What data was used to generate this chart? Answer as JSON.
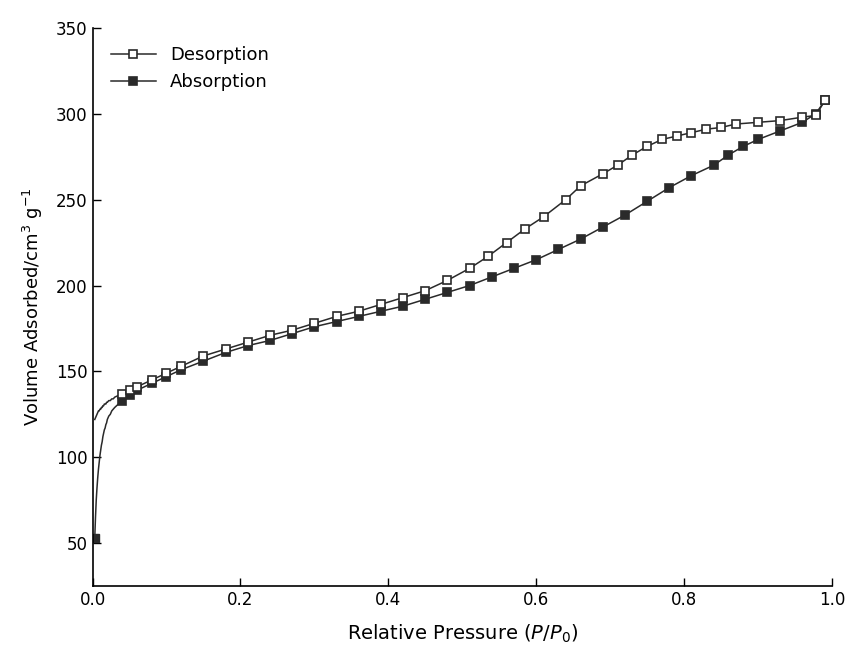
{
  "desorption_x": [
    0.003,
    0.004,
    0.005,
    0.006,
    0.007,
    0.008,
    0.009,
    0.01,
    0.011,
    0.012,
    0.013,
    0.014,
    0.015,
    0.016,
    0.017,
    0.018,
    0.019,
    0.02,
    0.022,
    0.024,
    0.026,
    0.028,
    0.03,
    0.035,
    0.04,
    0.05,
    0.06,
    0.08,
    0.1,
    0.12,
    0.15,
    0.18,
    0.21,
    0.24,
    0.27,
    0.3,
    0.33,
    0.36,
    0.39,
    0.42,
    0.45,
    0.48,
    0.51,
    0.535,
    0.56,
    0.585,
    0.61,
    0.64,
    0.66,
    0.69,
    0.71,
    0.73,
    0.75,
    0.77,
    0.79,
    0.81,
    0.83,
    0.85,
    0.87,
    0.9,
    0.93,
    0.96,
    0.978,
    0.991
  ],
  "desorption_y": [
    122,
    123,
    124,
    125,
    126,
    127,
    127,
    128,
    128,
    129,
    129,
    130,
    130,
    131,
    131,
    131,
    132,
    132,
    133,
    133,
    134,
    134,
    135,
    136,
    137,
    139,
    141,
    145,
    149,
    153,
    159,
    163,
    167,
    171,
    174,
    178,
    182,
    185,
    189,
    193,
    197,
    203,
    210,
    217,
    225,
    233,
    240,
    250,
    258,
    265,
    270,
    276,
    281,
    285,
    287,
    289,
    291,
    292,
    294,
    295,
    296,
    298,
    299,
    308
  ],
  "absorption_x": [
    0.003,
    0.004,
    0.005,
    0.006,
    0.007,
    0.008,
    0.009,
    0.01,
    0.011,
    0.012,
    0.013,
    0.014,
    0.015,
    0.016,
    0.017,
    0.018,
    0.019,
    0.02,
    0.022,
    0.024,
    0.026,
    0.028,
    0.03,
    0.035,
    0.04,
    0.05,
    0.06,
    0.08,
    0.1,
    0.12,
    0.15,
    0.18,
    0.21,
    0.24,
    0.27,
    0.3,
    0.33,
    0.36,
    0.39,
    0.42,
    0.45,
    0.48,
    0.51,
    0.54,
    0.57,
    0.6,
    0.63,
    0.66,
    0.69,
    0.72,
    0.75,
    0.78,
    0.81,
    0.84,
    0.86,
    0.88,
    0.9,
    0.93,
    0.96,
    0.978,
    0.991
  ],
  "absorption_y": [
    53,
    65,
    75,
    82,
    88,
    93,
    97,
    101,
    104,
    107,
    109,
    112,
    114,
    116,
    117,
    119,
    120,
    122,
    124,
    125,
    127,
    128,
    129,
    131,
    133,
    136,
    139,
    143,
    147,
    151,
    156,
    161,
    165,
    168,
    172,
    176,
    179,
    182,
    185,
    188,
    192,
    196,
    200,
    205,
    210,
    215,
    221,
    227,
    234,
    241,
    249,
    257,
    264,
    270,
    276,
    281,
    285,
    290,
    295,
    300,
    308
  ],
  "xlabel": "Relative Pressure ($P/P_0$)",
  "ylabel": "Volume Adsorbed/cm$^3$ g$^{-1}$",
  "xlim": [
    0.0,
    1.0
  ],
  "ylim": [
    25,
    350
  ],
  "xticks": [
    0.0,
    0.2,
    0.4,
    0.6,
    0.8,
    1.0
  ],
  "yticks": [
    50,
    100,
    150,
    200,
    250,
    300,
    350
  ],
  "legend_labels": [
    "Desorption",
    "Absorption"
  ],
  "line_color": "#2a2a2a",
  "background_color": "#ffffff",
  "marker_size": 6,
  "linewidth": 1.1
}
